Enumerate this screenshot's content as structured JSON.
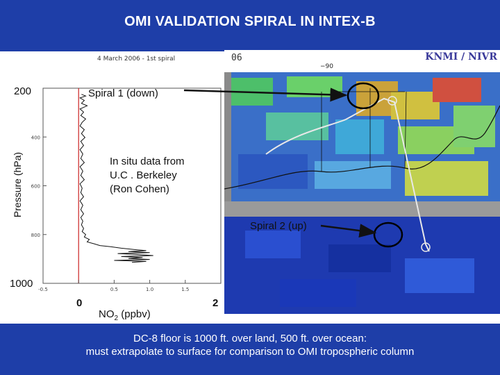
{
  "slide": {
    "title": "OMI VALIDATION SPIRAL IN INTEX-B",
    "footer": [
      "DC-8 floor is 1000 ft. over land, 500 ft. over ocean:",
      "must extrapolate to surface for comparison to OMI tropospheric column"
    ]
  },
  "map": {
    "date_fragment": "06",
    "credit": "KNMI / NIVR",
    "longitude_tick": "−90"
  },
  "annotations": {
    "spiral1": "Spiral 1 (down)",
    "spiral2": "Spiral 2 (up)",
    "insitu": [
      "In situ data from",
      "U.C . Berkeley",
      "(Ron Cohen)"
    ]
  },
  "chart_data": {
    "type": "line",
    "title": "4 March 2006 - 1st spiral",
    "xlabel_main": "NO",
    "xlabel_sub": "2",
    "xlabel_unit": "(ppbv)",
    "ylabel": "Pressure (hPa)",
    "ylim": [
      1000,
      200
    ],
    "xlim": [
      -0.5,
      2.0
    ],
    "major_y_labels": [
      "200",
      "1000"
    ],
    "minor_y_ticks": [
      400,
      600,
      800
    ],
    "major_x_labels": [
      {
        "value": 0,
        "label": "0"
      },
      {
        "value": 2,
        "label": "2"
      }
    ],
    "minor_x_ticks": [
      {
        "value": -0.5,
        "label": "-0.5"
      },
      {
        "value": 0.5,
        "label": "0.5"
      },
      {
        "value": 1.0,
        "label": "1.0"
      },
      {
        "value": 1.5,
        "label": "1.5"
      }
    ],
    "reference_line_x": 0,
    "reference_color": "#cc2222",
    "series": [
      {
        "points": [
          [
            0.04,
            225
          ],
          [
            0.1,
            232
          ],
          [
            0.02,
            240
          ],
          [
            0.08,
            250
          ],
          [
            0.04,
            262
          ],
          [
            0.12,
            272
          ],
          [
            0.02,
            285
          ],
          [
            0.07,
            298
          ],
          [
            0.03,
            312
          ],
          [
            0.1,
            326
          ],
          [
            0.05,
            340
          ],
          [
            0.02,
            355
          ],
          [
            0.08,
            370
          ],
          [
            0.04,
            386
          ],
          [
            0.09,
            402
          ],
          [
            0.03,
            418
          ],
          [
            0.07,
            435
          ],
          [
            0.02,
            452
          ],
          [
            0.06,
            470
          ],
          [
            0.03,
            488
          ],
          [
            0.08,
            505
          ],
          [
            0.02,
            522
          ],
          [
            0.06,
            540
          ],
          [
            0.03,
            558
          ],
          [
            0.08,
            575
          ],
          [
            0.02,
            592
          ],
          [
            0.05,
            610
          ],
          [
            0.03,
            628
          ],
          [
            0.07,
            645
          ],
          [
            0.02,
            662
          ],
          [
            0.06,
            680
          ],
          [
            0.03,
            698
          ],
          [
            0.07,
            715
          ],
          [
            0.03,
            730
          ],
          [
            0.06,
            745
          ],
          [
            0.04,
            760
          ],
          [
            0.07,
            775
          ],
          [
            0.05,
            788
          ],
          [
            0.1,
            800
          ],
          [
            0.08,
            810
          ],
          [
            0.15,
            820
          ],
          [
            0.12,
            830
          ],
          [
            0.22,
            838
          ],
          [
            0.3,
            845
          ],
          [
            0.45,
            850
          ],
          [
            0.6,
            856
          ],
          [
            0.8,
            862
          ],
          [
            0.95,
            866
          ],
          [
            0.7,
            870
          ],
          [
            1.0,
            874
          ],
          [
            0.55,
            878
          ],
          [
            0.85,
            882
          ],
          [
            1.05,
            886
          ],
          [
            0.6,
            890
          ],
          [
            0.9,
            894
          ],
          [
            0.7,
            898
          ],
          [
            1.0,
            902
          ],
          [
            0.5,
            906
          ],
          [
            0.95,
            910
          ],
          [
            0.75,
            914
          ]
        ]
      }
    ]
  }
}
